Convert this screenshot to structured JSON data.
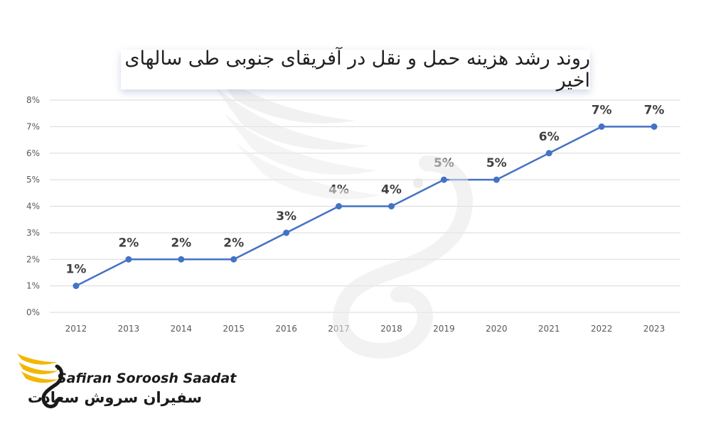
{
  "chart_data": {
    "type": "line",
    "title": "روند رشد هزینه حمل و نقل در آفریقای جنوبی طی سالهای اخیر",
    "categories": [
      "2012",
      "2013",
      "2014",
      "2015",
      "2016",
      "2017",
      "2018",
      "2019",
      "2020",
      "2021",
      "2022",
      "2023"
    ],
    "series": [
      {
        "values": [
          1,
          2,
          2,
          2,
          3,
          4,
          4,
          5,
          5,
          6,
          7,
          7
        ]
      }
    ],
    "data_labels": [
      "1%",
      "2%",
      "2%",
      "2%",
      "3%",
      "4%",
      "4%",
      "5%",
      "5%",
      "6%",
      "7%",
      "7%"
    ],
    "y_ticks": [
      "0%",
      "1%",
      "2%",
      "3%",
      "4%",
      "5%",
      "6%",
      "7%",
      "8%"
    ],
    "ylim": [
      0,
      8
    ],
    "grid": true,
    "legend": "none",
    "line_color": "#4472c4",
    "grid_color": "#d9d9d9"
  },
  "brand": {
    "name_en": "Safiran Soroosh Saadat",
    "name_fa": "سفیران سروش سعادت",
    "accent_color": "#f2b705",
    "icon": "bird-wing-icon"
  }
}
